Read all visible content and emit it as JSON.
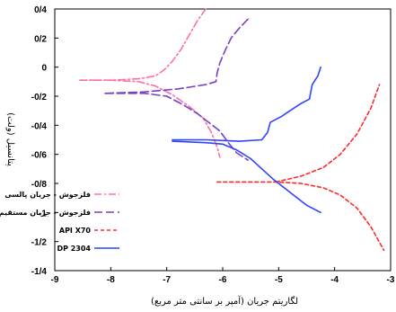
{
  "chart_data": {
    "type": "line",
    "xlabel": "لگاریتم جریان (آمپر بر سانتی متر مربع)",
    "ylabel": "پتانسیل (ولت)",
    "xlim": [
      -9,
      -3
    ],
    "ylim": [
      -1.4,
      0.4
    ],
    "grid": false,
    "legend_position": "bottom-left",
    "x_ticks": [
      {
        "value": -9,
        "label": "-9"
      },
      {
        "value": -8,
        "label": "-8"
      },
      {
        "value": -7,
        "label": "-7"
      },
      {
        "value": -6,
        "label": "-6"
      },
      {
        "value": -5,
        "label": "-5"
      },
      {
        "value": -4,
        "label": "-4"
      },
      {
        "value": -3,
        "label": "-3"
      }
    ],
    "y_ticks": [
      {
        "value": 0.4,
        "label": "0/4"
      },
      {
        "value": 0.2,
        "label": "0/2"
      },
      {
        "value": 0,
        "label": "0"
      },
      {
        "value": -0.2,
        "label": "-0/2"
      },
      {
        "value": -0.4,
        "label": "-0/4"
      },
      {
        "value": -0.6,
        "label": "-0/6"
      },
      {
        "value": -0.8,
        "label": "-0/8"
      },
      {
        "value": -1,
        "label": "-1"
      },
      {
        "value": -1.2,
        "label": "-1/2"
      },
      {
        "value": -1.4,
        "label": "-1/4"
      }
    ],
    "series": [
      {
        "name": "فلزجوش - جریان پالسی",
        "color": "#ff6fa8",
        "dash": "8,3,2,3",
        "segments": [
          [
            [
              -6.3,
              0.4
            ],
            [
              -6.45,
              0.32
            ],
            [
              -6.6,
              0.22
            ],
            [
              -6.75,
              0.12
            ],
            [
              -6.9,
              0.04
            ],
            [
              -7.05,
              -0.02
            ],
            [
              -7.2,
              -0.06
            ],
            [
              -7.5,
              -0.08
            ],
            [
              -8.0,
              -0.09
            ],
            [
              -8.55,
              -0.09
            ]
          ],
          [
            [
              -8.55,
              -0.09
            ],
            [
              -8.0,
              -0.09
            ],
            [
              -7.5,
              -0.1
            ],
            [
              -7.2,
              -0.13
            ],
            [
              -6.9,
              -0.19
            ],
            [
              -6.6,
              -0.27
            ],
            [
              -6.35,
              -0.35
            ],
            [
              -6.2,
              -0.45
            ],
            [
              -6.1,
              -0.55
            ],
            [
              -6.05,
              -0.62
            ]
          ]
        ]
      },
      {
        "name": "فلزجوش - جریان مستقیم",
        "color": "#7a3fc2",
        "dash": "9,4",
        "segments": [
          [
            [
              -5.55,
              0.33
            ],
            [
              -5.7,
              0.27
            ],
            [
              -5.85,
              0.2
            ],
            [
              -5.95,
              0.12
            ],
            [
              -6.05,
              0.03
            ],
            [
              -6.1,
              -0.04
            ],
            [
              -6.12,
              -0.1
            ],
            [
              -6.3,
              -0.12
            ],
            [
              -6.8,
              -0.15
            ],
            [
              -7.4,
              -0.17
            ],
            [
              -8.1,
              -0.18
            ]
          ],
          [
            [
              -8.1,
              -0.18
            ],
            [
              -7.4,
              -0.18
            ],
            [
              -7.0,
              -0.2
            ],
            [
              -6.7,
              -0.26
            ],
            [
              -6.45,
              -0.32
            ],
            [
              -6.25,
              -0.38
            ],
            [
              -6.05,
              -0.44
            ],
            [
              -5.9,
              -0.52
            ],
            [
              -5.75,
              -0.59
            ],
            [
              -5.55,
              -0.64
            ]
          ]
        ]
      },
      {
        "name": "API X70",
        "color": "#ff2a2a",
        "dash": "4,3",
        "segments": [
          [
            [
              -5.05,
              -0.79
            ],
            [
              -4.6,
              -0.75
            ],
            [
              -4.2,
              -0.69
            ],
            [
              -3.9,
              -0.6
            ],
            [
              -3.6,
              -0.46
            ],
            [
              -3.35,
              -0.28
            ],
            [
              -3.2,
              -0.12
            ]
          ],
          [
            [
              -6.1,
              -0.79
            ],
            [
              -5.5,
              -0.79
            ],
            [
              -5.05,
              -0.79
            ],
            [
              -4.6,
              -0.8
            ],
            [
              -4.2,
              -0.83
            ],
            [
              -3.9,
              -0.88
            ],
            [
              -3.6,
              -0.97
            ],
            [
              -3.35,
              -1.1
            ],
            [
              -3.12,
              -1.26
            ]
          ]
        ]
      },
      {
        "name": "DP 2304",
        "color": "#2f43ff",
        "dash": "",
        "segments": [
          [
            [
              -6.9,
              -0.5
            ],
            [
              -6.3,
              -0.5
            ],
            [
              -5.7,
              -0.51
            ],
            [
              -5.3,
              -0.5
            ],
            [
              -5.2,
              -0.45
            ],
            [
              -5.15,
              -0.38
            ],
            [
              -4.95,
              -0.34
            ],
            [
              -4.8,
              -0.3
            ],
            [
              -4.6,
              -0.25
            ],
            [
              -4.45,
              -0.22
            ],
            [
              -4.4,
              -0.12
            ],
            [
              -4.3,
              -0.06
            ],
            [
              -4.25,
              0.0
            ]
          ],
          [
            [
              -6.9,
              -0.51
            ],
            [
              -6.3,
              -0.52
            ],
            [
              -6.0,
              -0.53
            ],
            [
              -5.75,
              -0.57
            ],
            [
              -5.5,
              -0.63
            ],
            [
              -5.3,
              -0.7
            ],
            [
              -5.1,
              -0.77
            ],
            [
              -4.9,
              -0.83
            ],
            [
              -4.7,
              -0.89
            ],
            [
              -4.5,
              -0.95
            ],
            [
              -4.25,
              -1.0
            ]
          ]
        ]
      }
    ]
  }
}
